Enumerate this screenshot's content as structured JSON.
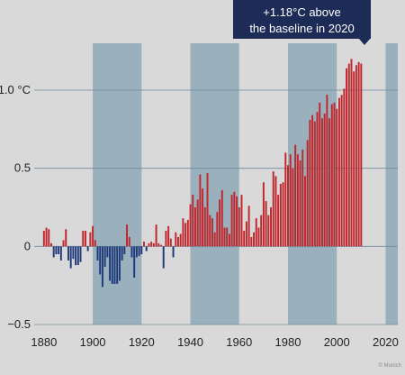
{
  "chart_data": {
    "type": "bar",
    "xlim": [
      1876,
      2025
    ],
    "ylim": [
      -0.5,
      1.3
    ],
    "y_ticks": [
      {
        "value": 1.0,
        "label": "1.0 °C"
      },
      {
        "value": 0.5,
        "label": "0.5"
      },
      {
        "value": 0,
        "label": "0"
      },
      {
        "value": -0.5,
        "label": "−0.5"
      }
    ],
    "x_ticks": [
      1880,
      1900,
      1920,
      1940,
      1960,
      1980,
      2000,
      2020
    ],
    "shaded_bands": [
      [
        1900,
        1920
      ],
      [
        1940,
        1960
      ],
      [
        1980,
        2000
      ],
      [
        2020,
        2030
      ]
    ],
    "colors": {
      "positive": "#c0272d",
      "negative": "#1f3a7a",
      "band": "#9ab0bc",
      "grid": "#6e8a9a",
      "background": "#d9d9d9"
    },
    "years_start": 1880,
    "values": [
      0.1,
      0.12,
      0.11,
      0.02,
      -0.07,
      -0.05,
      -0.05,
      -0.09,
      0.04,
      0.11,
      -0.09,
      -0.14,
      -0.08,
      -0.12,
      -0.12,
      -0.1,
      0.1,
      0.1,
      -0.03,
      0.09,
      0.13,
      0.04,
      -0.09,
      -0.18,
      -0.26,
      -0.13,
      -0.07,
      -0.22,
      -0.24,
      -0.24,
      -0.24,
      -0.22,
      -0.09,
      -0.05,
      0.14,
      0.06,
      -0.07,
      -0.2,
      -0.07,
      -0.06,
      -0.05,
      0.03,
      -0.03,
      0.02,
      0.03,
      0.02,
      0.14,
      0.02,
      0.01,
      -0.14,
      0.1,
      0.13,
      0.05,
      -0.07,
      0.09,
      0.06,
      0.08,
      0.18,
      0.15,
      0.17,
      0.27,
      0.33,
      0.25,
      0.3,
      0.46,
      0.37,
      0.25,
      0.47,
      0.2,
      0.18,
      0.09,
      0.22,
      0.3,
      0.36,
      0.12,
      0.12,
      0.08,
      0.33,
      0.35,
      0.32,
      0.25,
      0.33,
      0.1,
      0.16,
      0.26,
      0.06,
      0.09,
      0.18,
      0.12,
      0.2,
      0.41,
      0.29,
      0.2,
      0.25,
      0.48,
      0.45,
      0.33,
      0.4,
      0.41,
      0.6,
      0.52,
      0.59,
      0.5,
      0.65,
      0.59,
      0.55,
      0.62,
      0.45,
      0.68,
      0.81,
      0.84,
      0.8,
      0.86,
      0.92,
      0.82,
      0.85,
      0.97,
      0.82,
      0.91,
      0.92,
      0.88,
      0.95,
      0.97,
      1.01,
      1.14,
      1.17,
      1.2,
      1.12,
      1.16,
      1.18,
      1.17
    ],
    "annotation": "+1.18°C above\nthe baseline in 2020"
  },
  "callout": {
    "line1": "+1.18°C above",
    "line2": "the baseline in 2020"
  },
  "credit": "© Munich"
}
